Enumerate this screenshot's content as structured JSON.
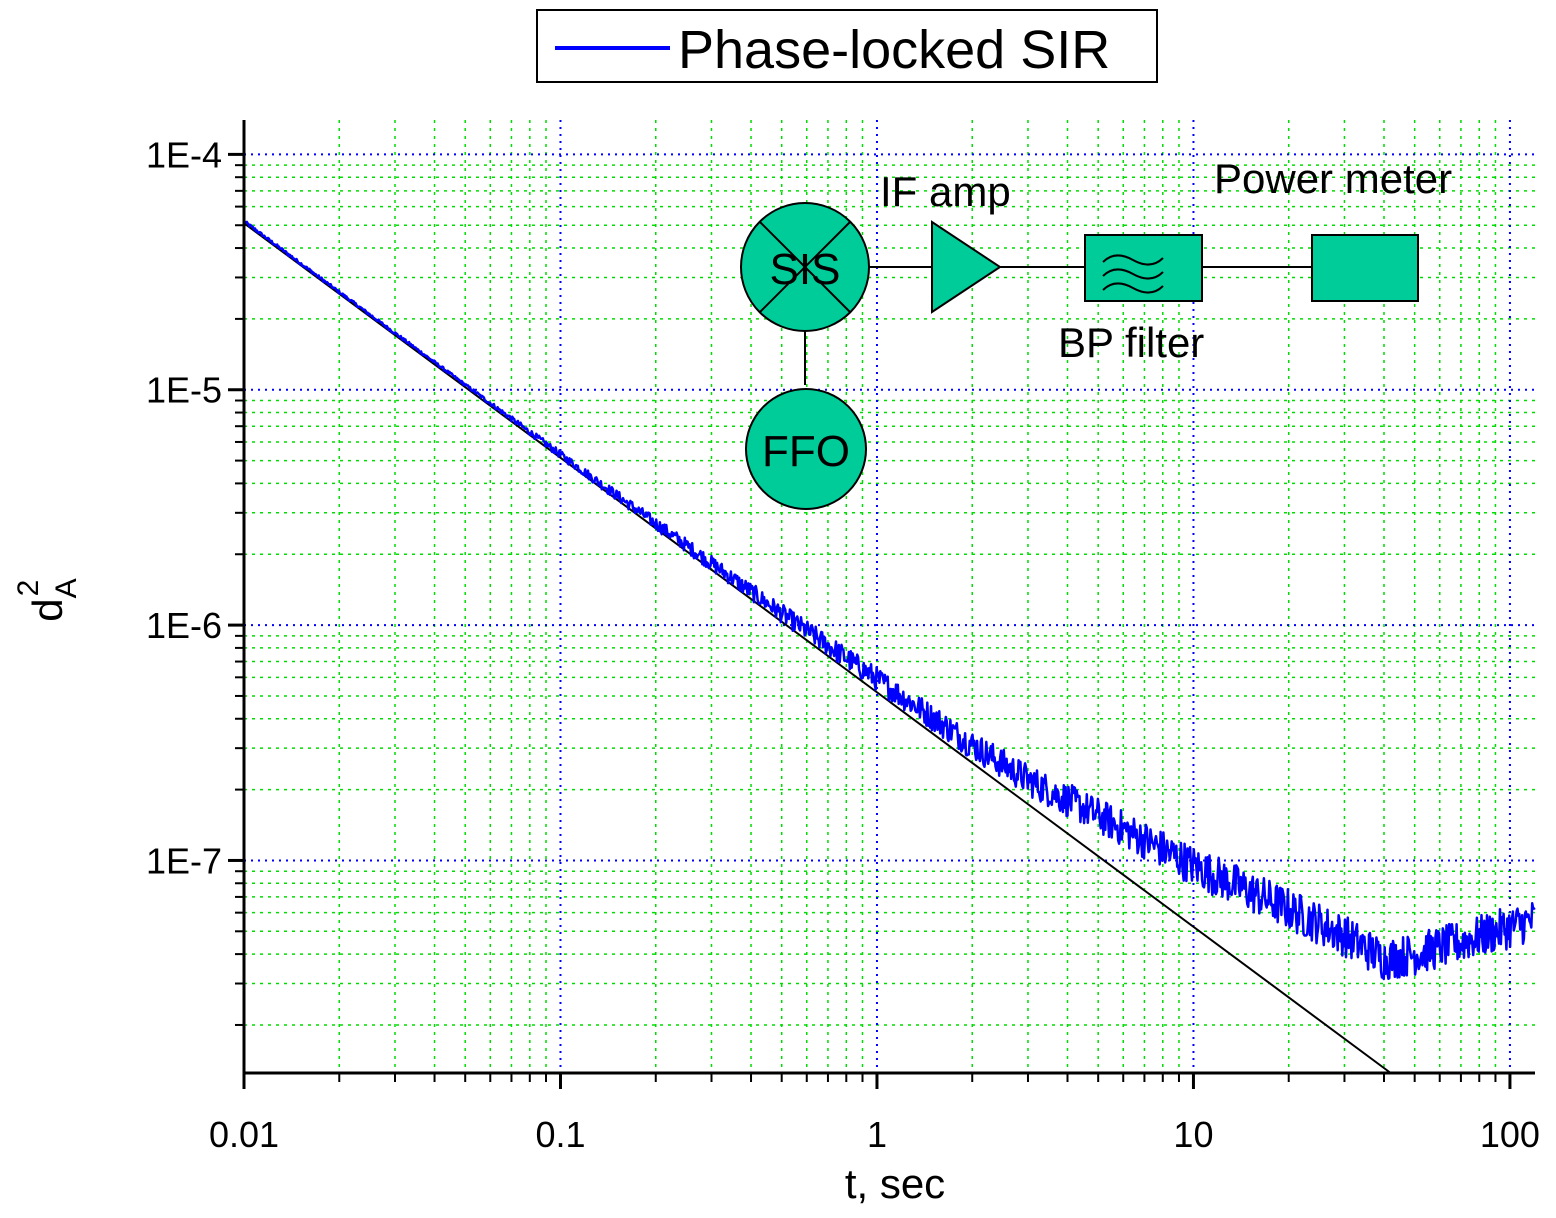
{
  "chart_data": {
    "type": "line",
    "x_scale": "log",
    "y_scale": "log",
    "xlim": [
      0.01,
      120
    ],
    "ylim": [
      1.25e-08,
      0.00014
    ],
    "xlabel": "t, sec",
    "ylabel": {
      "main": "d",
      "subscript": "A",
      "superscript": "2"
    },
    "x_ticks": [
      {
        "value": 0.01,
        "label": "0.01"
      },
      {
        "value": 0.1,
        "label": "0.1"
      },
      {
        "value": 1,
        "label": "1"
      },
      {
        "value": 10,
        "label": "10"
      },
      {
        "value": 100,
        "label": "100"
      }
    ],
    "y_ticks": [
      {
        "value": 0.0001,
        "label": "1E-4"
      },
      {
        "value": 1e-05,
        "label": "1E-5"
      },
      {
        "value": 1e-06,
        "label": "1E-6"
      },
      {
        "value": 1e-07,
        "label": "1E-7"
      }
    ],
    "grid": {
      "major": true,
      "minor": true,
      "major_color": "#0000ff",
      "minor_color": "#00dd00"
    },
    "legend": {
      "position": "top-center",
      "entries": [
        "Phase-locked SIR"
      ]
    },
    "series": [
      {
        "name": "Phase-locked SIR",
        "color": "#0000ff",
        "noisy": true,
        "x": [
          0.01,
          0.02,
          0.05,
          0.1,
          0.2,
          0.5,
          1,
          2,
          3,
          5,
          10,
          20,
          30,
          40,
          50,
          70,
          100,
          120
        ],
        "y": [
          5.2e-05,
          2.6e-05,
          1.05e-05,
          5.3e-06,
          2.7e-06,
          1.12e-06,
          5.9e-07,
          3.1e-07,
          2.2e-07,
          1.55e-07,
          9.5e-08,
          6.2e-08,
          4.8e-08,
          3.8e-08,
          4e-08,
          4.5e-08,
          5.2e-08,
          5.6e-08
        ]
      },
      {
        "color": "#000000",
        "noisy": false,
        "x": [
          0.01,
          42
        ],
        "y": [
          5.1e-05,
          1.25e-08
        ]
      }
    ],
    "inset_diagram": {
      "blocks": [
        {
          "id": "sis",
          "shape": "mixer-circle",
          "label": "SIS"
        },
        {
          "id": "ffo",
          "shape": "circle",
          "label": "FFO"
        },
        {
          "id": "amp",
          "shape": "triangle",
          "label": "IF amp"
        },
        {
          "id": "bp",
          "shape": "filter-box",
          "label": "BP filter"
        },
        {
          "id": "pm",
          "shape": "box",
          "label": "Power meter"
        }
      ],
      "fill_color": "#00cc99"
    }
  }
}
